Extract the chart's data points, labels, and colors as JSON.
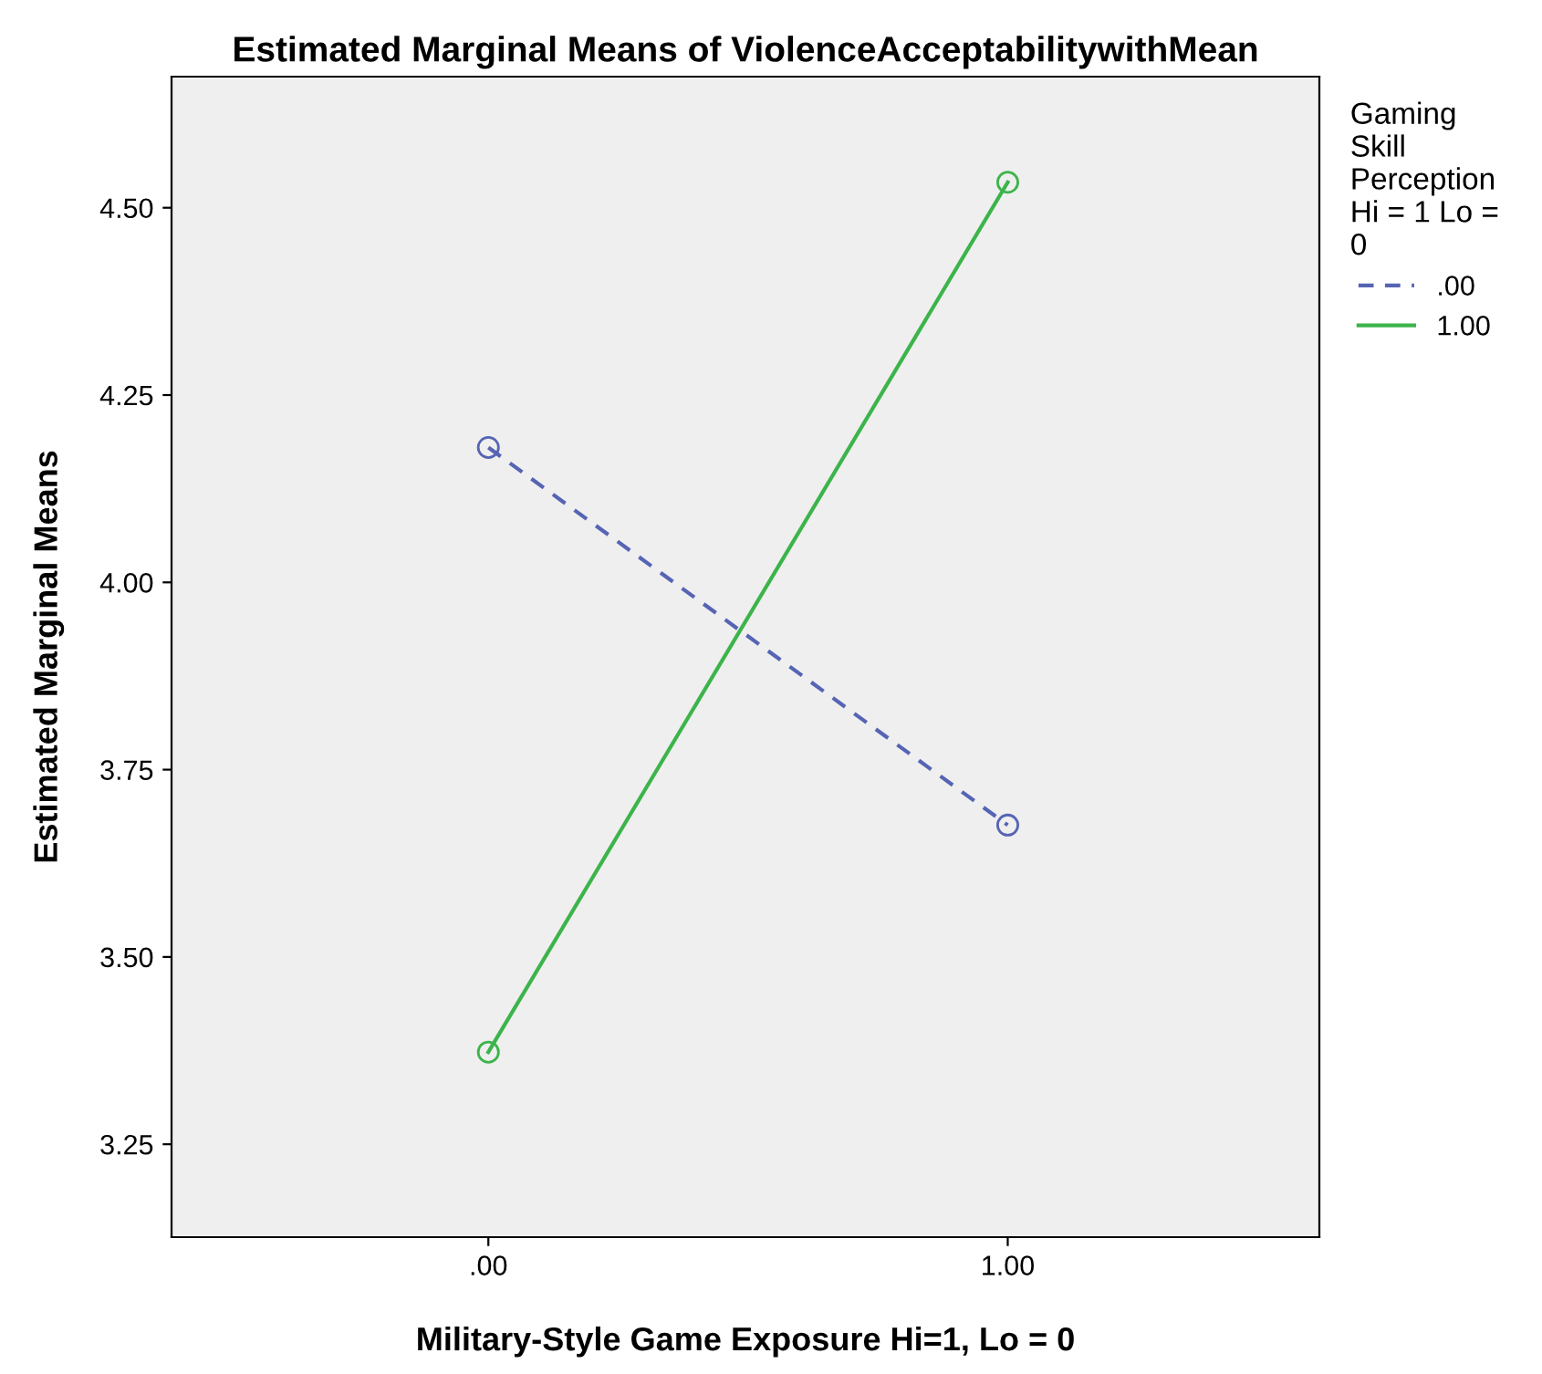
{
  "chart_data": {
    "type": "line",
    "title": "Estimated Marginal Means of ViolenceAcceptabilitywithMean",
    "xlabel": "Military-Style Game Exposure Hi=1, Lo = 0",
    "ylabel": "Estimated Marginal Means",
    "legend_title": "Gaming\nSkill\nPerception\nHi = 1 Lo =\n0",
    "x": [
      0,
      1
    ],
    "xlim": [
      -0.61,
      1.6
    ],
    "xticks": [
      {
        "value": 0,
        "label": ".00"
      },
      {
        "value": 1,
        "label": "1.00"
      }
    ],
    "ylim": [
      3.126,
      4.675
    ],
    "yticks": [
      {
        "value": 3.25,
        "label": "3.25"
      },
      {
        "value": 3.5,
        "label": "3.50"
      },
      {
        "value": 3.75,
        "label": "3.75"
      },
      {
        "value": 4.0,
        "label": "4.00"
      },
      {
        "value": 4.25,
        "label": "4.25"
      },
      {
        "value": 4.5,
        "label": "4.50"
      }
    ],
    "series": [
      {
        "name": ".00",
        "color": "#5664b4",
        "values": [
          4.18,
          3.676
        ],
        "line_style": "dashed"
      },
      {
        "name": "1.00",
        "color": "#3cb44b",
        "values": [
          3.373,
          4.534
        ],
        "line_style": "solid"
      }
    ],
    "marker": "circle",
    "grid": false,
    "legend": "right"
  }
}
